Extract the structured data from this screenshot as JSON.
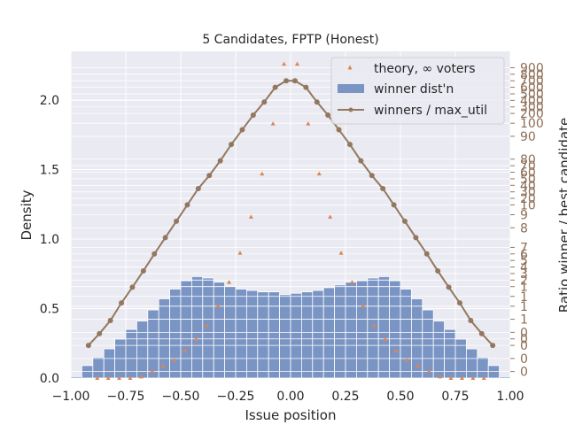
{
  "chart_data": {
    "type": "bar",
    "title": "5 Candidates, FPTP (Honest)",
    "xlabel": "Issue position",
    "ylabel": "Density",
    "y2label": "Ratio winner / best candidate",
    "xlim": [
      -1.0,
      1.0
    ],
    "ylim": [
      0.0,
      2.35
    ],
    "grid": true,
    "legend_position": "top-right",
    "xticks": [
      "−1.00",
      "−0.75",
      "−0.50",
      "−0.25",
      "0.00",
      "0.25",
      "0.50",
      "0.75",
      "1.00"
    ],
    "yticks": [
      "0.0",
      "0.5",
      "1.0",
      "1.5",
      "2.0"
    ],
    "y2ticks": [
      "0",
      "0",
      "0",
      "0",
      "0",
      "1",
      "1",
      "1",
      "1",
      "2",
      "3",
      "4",
      "5",
      "6",
      "7",
      "8",
      "9",
      "10",
      "20",
      "30",
      "40",
      "50",
      "60",
      "70",
      "80",
      "90",
      "100",
      "200",
      "300",
      "400",
      "500",
      "600",
      "700",
      "800",
      "900",
      "1000"
    ],
    "colors": {
      "bars": "#7a95c4",
      "theory": "#dd8452",
      "line": "#937860",
      "background": "#eaeaf2"
    },
    "series": [
      {
        "name": "theory, ∞ voters",
        "kind": "scatter",
        "x": [
          -0.88,
          -0.83,
          -0.78,
          -0.73,
          -0.68,
          -0.63,
          -0.58,
          -0.53,
          -0.48,
          -0.43,
          -0.38,
          -0.33,
          -0.28,
          -0.23,
          -0.18,
          -0.13,
          -0.08,
          -0.03,
          0.03,
          0.08,
          0.13,
          0.18,
          0.23,
          0.28,
          0.33,
          0.38,
          0.43,
          0.48,
          0.53,
          0.58,
          0.63,
          0.68,
          0.73,
          0.78,
          0.83,
          0.88
        ],
        "y": [
          0.0,
          0.0,
          0.0,
          0.0,
          0.01,
          0.05,
          0.09,
          0.13,
          0.2,
          0.28,
          0.38,
          0.52,
          0.69,
          0.9,
          1.16,
          1.47,
          1.83,
          2.26,
          2.26,
          1.83,
          1.47,
          1.16,
          0.9,
          0.69,
          0.52,
          0.38,
          0.28,
          0.2,
          0.13,
          0.09,
          0.05,
          0.01,
          0.0,
          0.0,
          0.0,
          0.0
        ]
      },
      {
        "name": "winner dist'n",
        "kind": "bar",
        "bin_width": 0.05,
        "x": [
          -0.975,
          -0.925,
          -0.875,
          -0.825,
          -0.775,
          -0.725,
          -0.675,
          -0.625,
          -0.575,
          -0.525,
          -0.475,
          -0.425,
          -0.375,
          -0.325,
          -0.275,
          -0.225,
          -0.175,
          -0.125,
          -0.075,
          -0.025,
          0.025,
          0.075,
          0.125,
          0.175,
          0.225,
          0.275,
          0.325,
          0.375,
          0.425,
          0.475,
          0.525,
          0.575,
          0.625,
          0.675,
          0.725,
          0.775,
          0.825,
          0.875,
          0.925,
          0.975
        ],
        "y": [
          0.01,
          0.09,
          0.15,
          0.21,
          0.28,
          0.35,
          0.41,
          0.49,
          0.57,
          0.64,
          0.7,
          0.73,
          0.72,
          0.69,
          0.66,
          0.64,
          0.63,
          0.62,
          0.62,
          0.6,
          0.61,
          0.62,
          0.63,
          0.65,
          0.67,
          0.69,
          0.7,
          0.72,
          0.73,
          0.7,
          0.64,
          0.57,
          0.49,
          0.41,
          0.35,
          0.28,
          0.21,
          0.15,
          0.09,
          0.01
        ]
      },
      {
        "name": "winners / max_util",
        "kind": "line",
        "axis": "right",
        "x": [
          -0.92,
          -0.87,
          -0.82,
          -0.77,
          -0.72,
          -0.67,
          -0.62,
          -0.57,
          -0.52,
          -0.47,
          -0.42,
          -0.37,
          -0.32,
          -0.27,
          -0.22,
          -0.17,
          -0.12,
          -0.07,
          -0.02,
          0.02,
          0.07,
          0.12,
          0.17,
          0.22,
          0.27,
          0.32,
          0.37,
          0.42,
          0.47,
          0.52,
          0.57,
          0.62,
          0.67,
          0.72,
          0.77,
          0.82,
          0.87,
          0.92
        ],
        "y": [
          1.0,
          1.036,
          1.076,
          1.13,
          1.178,
          1.228,
          1.28,
          1.33,
          1.38,
          1.43,
          1.48,
          1.52,
          1.565,
          1.615,
          1.66,
          1.705,
          1.745,
          1.79,
          1.81,
          1.81,
          1.79,
          1.745,
          1.705,
          1.66,
          1.615,
          1.565,
          1.52,
          1.48,
          1.43,
          1.38,
          1.33,
          1.28,
          1.228,
          1.178,
          1.13,
          1.076,
          1.036,
          1.0
        ]
      }
    ]
  }
}
